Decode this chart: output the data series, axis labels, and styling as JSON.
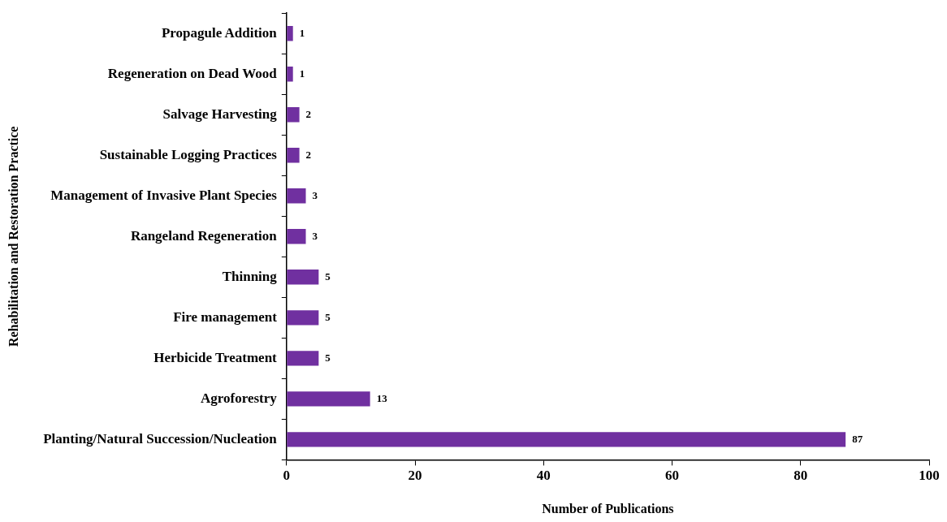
{
  "chart_data": {
    "type": "bar",
    "orientation": "horizontal",
    "xlabel": "Number of Publications",
    "ylabel": "Rehabilitation and Restoration Practice",
    "categories": [
      "Propagule Addition",
      "Regeneration on Dead Wood",
      "Salvage Harvesting",
      "Sustainable Logging Practices",
      "Management of Invasive Plant Species",
      "Rangeland Regeneration",
      "Thinning",
      "Fire management",
      "Herbicide Treatment",
      "Agroforestry",
      "Planting/Natural Succession/Nucleation"
    ],
    "values": [
      1,
      1,
      2,
      2,
      3,
      3,
      5,
      5,
      5,
      13,
      87
    ],
    "color": "#7030a0",
    "xlim": [
      0,
      100
    ],
    "xticks": [
      0,
      20,
      40,
      60,
      80,
      100
    ],
    "data_labels": true,
    "legend": false
  }
}
